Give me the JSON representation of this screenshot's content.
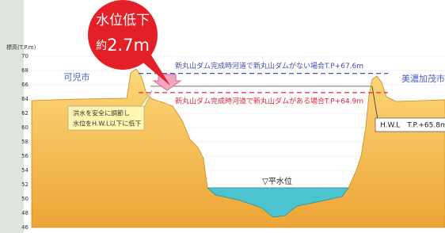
{
  "axis": {
    "label": "標高(T.P.m)",
    "ylim": [
      46,
      70
    ],
    "yticks": [
      46,
      48,
      50,
      52,
      54,
      56,
      58,
      60,
      62,
      64,
      66,
      68,
      70
    ]
  },
  "callout": {
    "line1": "水位低下",
    "prefix": "約",
    "amount": "2.7m"
  },
  "places": {
    "left": "可児市",
    "right": "美濃加茂市"
  },
  "levels": [
    {
      "label": "新丸山ダム完成時河道で新丸山ダムがない場合T.P+67.6m",
      "value": 67.6,
      "color": "#3d4fb8"
    },
    {
      "label": "新丸山ダム完成時河道で新丸山ダムがある場合T.P+64.9m",
      "value": 64.9,
      "color": "#e0283a"
    },
    {
      "label": "H.W.L　T.P.+65.8m",
      "value": 65.8,
      "color": "#888888"
    }
  ],
  "note": {
    "line1": "洪水を安全に調節し",
    "line2": "水位をH.W.L以下に低下"
  },
  "normal_water": "▽平水位"
}
